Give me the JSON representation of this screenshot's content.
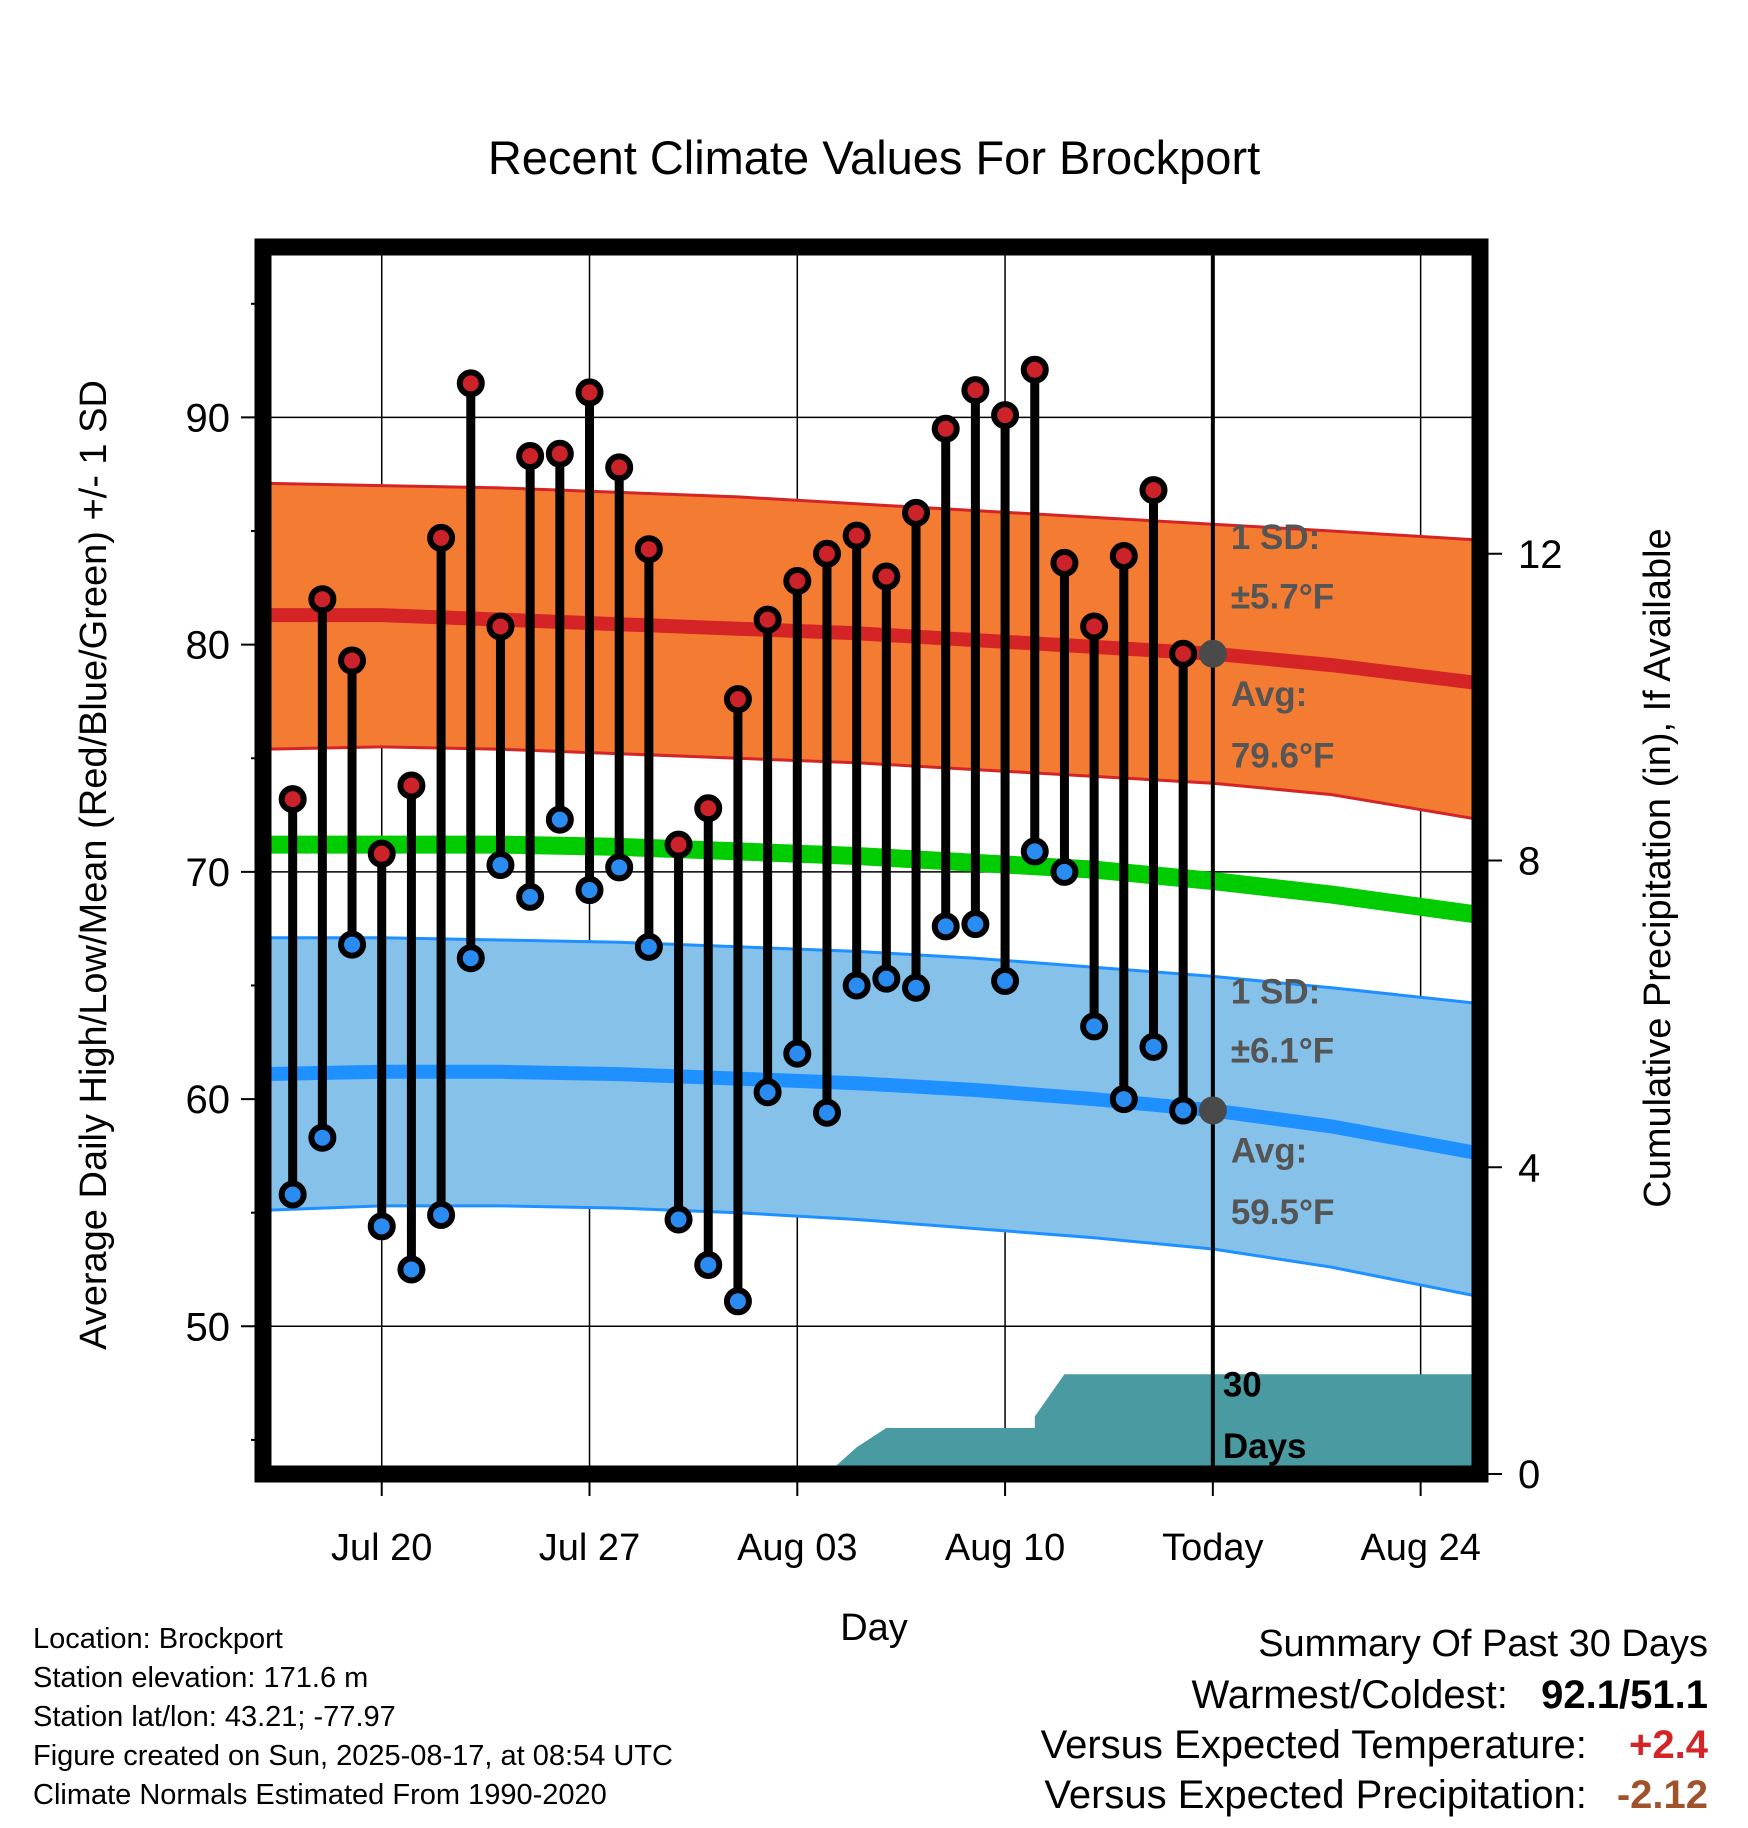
{
  "chart_data": {
    "type": "line",
    "title": "Recent Climate Values For Brockport",
    "xlabel": "Day",
    "ylabel": "Average Daily High/Low/Mean (Red/Blue/Green) +/- 1 SD",
    "y2label": "Cumulative Precipitation (in), If Available",
    "ylim": [
      43.5,
      97.5
    ],
    "y2lim": [
      0,
      16
    ],
    "xlim": [
      "2025-07-16",
      "2025-08-26"
    ],
    "yticks": [
      50,
      60,
      70,
      80,
      90
    ],
    "y2ticks": [
      0,
      4,
      8,
      12
    ],
    "xticks": [
      {
        "date": "2025-07-20",
        "label": "Jul 20"
      },
      {
        "date": "2025-07-27",
        "label": "Jul 27"
      },
      {
        "date": "2025-08-03",
        "label": "Aug 03"
      },
      {
        "date": "2025-08-10",
        "label": "Aug 10"
      },
      {
        "date": "2025-08-17",
        "label": "Today"
      },
      {
        "date": "2025-08-24",
        "label": "Aug 24"
      }
    ],
    "today": "2025-08-17",
    "daily": {
      "dates": [
        "2025-07-17",
        "2025-07-18",
        "2025-07-19",
        "2025-07-20",
        "2025-07-21",
        "2025-07-22",
        "2025-07-23",
        "2025-07-24",
        "2025-07-25",
        "2025-07-26",
        "2025-07-27",
        "2025-07-28",
        "2025-07-29",
        "2025-07-30",
        "2025-07-31",
        "2025-08-01",
        "2025-08-02",
        "2025-08-03",
        "2025-08-04",
        "2025-08-05",
        "2025-08-06",
        "2025-08-07",
        "2025-08-08",
        "2025-08-09",
        "2025-08-10",
        "2025-08-11",
        "2025-08-12",
        "2025-08-13",
        "2025-08-14",
        "2025-08-15",
        "2025-08-16"
      ],
      "high": [
        73.2,
        82.0,
        79.3,
        70.8,
        73.8,
        84.7,
        91.5,
        80.8,
        88.3,
        88.4,
        91.1,
        87.8,
        84.2,
        71.2,
        72.8,
        77.6,
        81.1,
        82.8,
        84.0,
        84.8,
        83.0,
        85.8,
        89.5,
        91.2,
        90.1,
        92.1,
        83.6,
        80.8,
        83.9,
        86.8,
        79.6
      ],
      "low": [
        55.8,
        58.3,
        66.8,
        54.4,
        52.5,
        54.9,
        66.2,
        70.3,
        68.9,
        72.3,
        69.2,
        70.2,
        66.7,
        54.7,
        52.7,
        51.1,
        60.3,
        62.0,
        59.4,
        65.0,
        65.3,
        64.9,
        67.6,
        67.7,
        65.2,
        70.9,
        70.0,
        63.2,
        60.0,
        62.3,
        59.5
      ]
    },
    "normals": {
      "dates": [
        "2025-07-16",
        "2025-07-20",
        "2025-07-24",
        "2025-07-28",
        "2025-08-01",
        "2025-08-05",
        "2025-08-09",
        "2025-08-13",
        "2025-08-17",
        "2025-08-21",
        "2025-08-26"
      ],
      "high_avg": [
        81.3,
        81.3,
        81.1,
        80.9,
        80.7,
        80.5,
        80.2,
        79.9,
        79.6,
        79.1,
        78.3
      ],
      "high_sd_upper": [
        87.1,
        87.0,
        86.9,
        86.7,
        86.5,
        86.2,
        85.9,
        85.6,
        85.3,
        85.0,
        84.6
      ],
      "high_sd_lower": [
        75.4,
        75.5,
        75.4,
        75.2,
        75.0,
        74.8,
        74.5,
        74.2,
        73.9,
        73.4,
        72.3
      ],
      "mean_avg": [
        71.2,
        71.2,
        71.2,
        71.1,
        70.9,
        70.7,
        70.4,
        70.1,
        69.6,
        69.0,
        68.1
      ],
      "low_avg": [
        61.1,
        61.2,
        61.2,
        61.1,
        60.9,
        60.7,
        60.4,
        60.0,
        59.5,
        58.8,
        57.6
      ],
      "low_sd_upper": [
        67.1,
        67.1,
        67.0,
        66.9,
        66.7,
        66.5,
        66.2,
        65.8,
        65.4,
        64.9,
        64.2
      ],
      "low_sd_lower": [
        55.1,
        55.3,
        55.3,
        55.2,
        55.0,
        54.7,
        54.3,
        53.9,
        53.4,
        52.6,
        51.3
      ]
    },
    "precip_cumulative": {
      "dates": [
        "2025-08-04",
        "2025-08-05",
        "2025-08-06",
        "2025-08-07",
        "2025-08-08",
        "2025-08-09",
        "2025-08-10",
        "2025-08-11",
        "2025-08-11",
        "2025-08-12",
        "2025-08-13",
        "2025-08-14",
        "2025-08-15",
        "2025-08-16",
        "2025-08-17",
        "2025-08-26"
      ],
      "values": [
        0.0,
        0.35,
        0.6,
        0.6,
        0.6,
        0.6,
        0.6,
        0.6,
        0.75,
        1.3,
        1.3,
        1.3,
        1.3,
        1.3,
        1.3,
        1.3
      ]
    },
    "annotations": {
      "high_sd": "1 SD:",
      "high_sd_value": "±5.7°F",
      "high_avg_label": "Avg:",
      "high_avg_value": "79.6°F",
      "low_sd": "1 SD:",
      "low_sd_value": "±6.1°F",
      "low_avg_label": "Avg:",
      "low_avg_value": "59.5°F",
      "period_line1": "30",
      "period_line2": "Days"
    },
    "colors": {
      "high_band": "#f47c32",
      "high_line": "#d42426",
      "low_band": "#85c1e9",
      "low_line": "#1e90ff",
      "mean_line": "#00cc00",
      "precip_fill": "#4a9aa2",
      "high_dot": "#cc2229",
      "low_dot": "#2a8cf0",
      "annotation_text": "#555555",
      "today_dot": "#4a4a4a"
    }
  },
  "footer": {
    "location": "Location: Brockport",
    "elevation": "Station elevation: 171.6 m",
    "latlon": "Station lat/lon: 43.21; -77.97",
    "created": "Figure created on Sun, 2025-08-17, at 08:54 UTC",
    "normals": "Climate Normals Estimated From 1990-2020"
  },
  "summary": {
    "heading": "Summary Of Past 30 Days",
    "warm_cold_label": "Warmest/Coldest:",
    "warmest": "92.1",
    "separator": "/",
    "coldest": "51.1",
    "temp_label": "Versus Expected Temperature:",
    "temp_value": "+2.4",
    "temp_color": "#d42426",
    "precip_label": "Versus Expected Precipitation:",
    "precip_value": "-2.12",
    "precip_color": "#a0522d"
  }
}
